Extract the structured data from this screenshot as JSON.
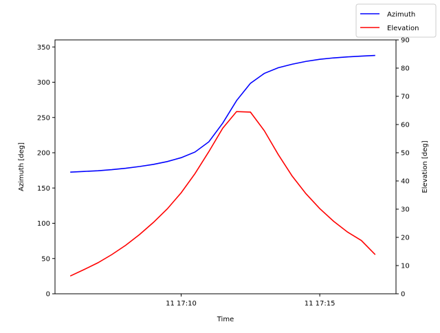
{
  "chart_data": {
    "type": "line",
    "xlabel": "Time",
    "ylabel": "Azimuth [deg]",
    "y2label": "Elevation [deg]",
    "x_ticks": [
      "11 17:10",
      "11 17:15"
    ],
    "x_tick_minutes": [
      10,
      15
    ],
    "xlim_minutes": [
      5.45,
      17.75
    ],
    "ylim": [
      0,
      360
    ],
    "y_ticks": [
      0,
      50,
      100,
      150,
      200,
      250,
      300,
      350
    ],
    "y2lim": [
      0,
      90
    ],
    "y2_ticks": [
      0,
      10,
      20,
      30,
      40,
      50,
      60,
      70,
      80,
      90
    ],
    "grid": false,
    "legend_placement": "top-right",
    "x_minutes": [
      6.0,
      6.5,
      7.0,
      7.5,
      8.0,
      8.5,
      9.0,
      9.5,
      10.0,
      10.5,
      11.0,
      11.5,
      12.0,
      12.5,
      13.0,
      13.5,
      14.0,
      14.5,
      15.0,
      15.5,
      16.0,
      16.5,
      17.0
    ],
    "series": [
      {
        "name": "Azimuth",
        "axis": "left",
        "color": "#0000ff",
        "values": [
          172.5,
          173.5,
          174.5,
          176,
          178,
          180.5,
          183.5,
          187.5,
          193,
          201,
          215.5,
          242,
          274,
          298.5,
          312.5,
          320.5,
          325.5,
          329.5,
          332.5,
          334.5,
          335.9,
          337,
          338
        ]
      },
      {
        "name": "Elevation",
        "axis": "right",
        "color": "#ff0000",
        "values": [
          6.3,
          8.6,
          11.0,
          13.9,
          17.2,
          21.0,
          25.3,
          30.1,
          35.8,
          42.6,
          50.4,
          58.7,
          64.6,
          64.4,
          57.8,
          49.4,
          41.8,
          35.5,
          30.2,
          25.7,
          21.9,
          18.9,
          13.9
        ]
      }
    ]
  }
}
